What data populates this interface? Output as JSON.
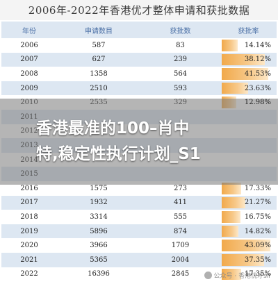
{
  "title": "2006年-2022年香港优才整体申请和获批数据",
  "table": {
    "headers": [
      "年份",
      "申请数目",
      "获批数",
      "获批率"
    ],
    "rows": [
      {
        "year": "2006",
        "applications": "587",
        "approved": "83",
        "rate": "14.14%",
        "rate_value": 14.14
      },
      {
        "year": "2007",
        "applications": "627",
        "approved": "239",
        "rate": "38.12%",
        "rate_value": 38.12
      },
      {
        "year": "2008",
        "applications": "1358",
        "approved": "564",
        "rate": "41.53%",
        "rate_value": 41.53
      },
      {
        "year": "2009",
        "applications": "2510",
        "approved": "593",
        "rate": "23.63%",
        "rate_value": 23.63
      },
      {
        "year": "2010",
        "applications": "2535",
        "approved": "329",
        "rate": "12.98%",
        "rate_value": 12.98
      },
      {
        "year": "2011",
        "applications": "",
        "approved": "",
        "rate": "",
        "rate_value": null
      },
      {
        "year": "2012",
        "applications": "",
        "approved": "",
        "rate": "",
        "rate_value": null
      },
      {
        "year": "2013",
        "applications": "",
        "approved": "",
        "rate": "",
        "rate_value": null
      },
      {
        "year": "2014",
        "applications": "",
        "approved": "",
        "rate": "",
        "rate_value": null
      },
      {
        "year": "2015",
        "applications": "",
        "approved": "",
        "rate": "",
        "rate_value": null
      },
      {
        "year": "2016",
        "applications": "1575",
        "approved": "273",
        "rate": "17.33%",
        "rate_value": 17.33
      },
      {
        "year": "2017",
        "applications": "1932",
        "approved": "411",
        "rate": "21.27%",
        "rate_value": 21.27
      },
      {
        "year": "2018",
        "applications": "3314",
        "approved": "555",
        "rate": "16.75%",
        "rate_value": 16.75
      },
      {
        "year": "2019",
        "applications": "5896",
        "approved": "874",
        "rate": "14.82%",
        "rate_value": 14.82
      },
      {
        "year": "2020",
        "applications": "3966",
        "approved": "1709",
        "rate": "43.09%",
        "rate_value": 43.09
      },
      {
        "year": "2021",
        "applications": "5365",
        "approved": "2004",
        "rate": "37.35%",
        "rate_value": 37.35
      },
      {
        "year": "2022",
        "applications": "16396",
        "approved": "2845",
        "rate": "17.35%",
        "rate_value": 17.35
      }
    ]
  },
  "banner": {
    "line1": "香港最准的100–肖中",
    "line2": "特,稳定性执行计划_S1"
  },
  "watermark": "公众号 · 香港优才sir",
  "colors": {
    "row_alt": "#dde7f2",
    "header_text": "#4a6fa5",
    "bar": "#f1a94b"
  }
}
